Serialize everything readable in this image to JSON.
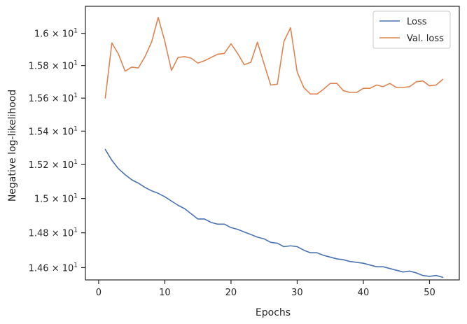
{
  "chart_data": {
    "type": "line",
    "title": "",
    "xlabel": "Epochs",
    "ylabel": "Negative log-likelihood",
    "xlim": [
      -2,
      54.5
    ],
    "ylim": [
      14.53,
      16.17
    ],
    "y_scale": "log",
    "grid": false,
    "legend_position": "top-right",
    "x_ticks": [
      0,
      10,
      20,
      30,
      40,
      50
    ],
    "x_tick_labels": [
      "0",
      "10",
      "20",
      "30",
      "40",
      "50"
    ],
    "y_ticks": [
      14.6,
      14.8,
      15.0,
      15.2,
      15.4,
      15.6,
      15.8,
      16.0
    ],
    "y_tick_labels": [
      {
        "base": "1.46",
        "times": " × 10",
        "exp": "1"
      },
      {
        "base": "1.48",
        "times": " × 10",
        "exp": "1"
      },
      {
        "base": "1.5",
        "times": " × 10",
        "exp": "1"
      },
      {
        "base": "1.52",
        "times": " × 10",
        "exp": "1"
      },
      {
        "base": "1.54",
        "times": " × 10",
        "exp": "1"
      },
      {
        "base": "1.56",
        "times": " × 10",
        "exp": "1"
      },
      {
        "base": "1.58",
        "times": " × 10",
        "exp": "1"
      },
      {
        "base": "1.6",
        "times": " × 10",
        "exp": "1"
      }
    ],
    "x": [
      1,
      2,
      3,
      4,
      5,
      6,
      7,
      8,
      9,
      10,
      11,
      12,
      13,
      14,
      15,
      16,
      17,
      18,
      19,
      20,
      21,
      22,
      23,
      24,
      25,
      26,
      27,
      28,
      29,
      30,
      31,
      32,
      33,
      34,
      35,
      36,
      37,
      38,
      39,
      40,
      41,
      42,
      43,
      44,
      45,
      46,
      47,
      48,
      49,
      50,
      51,
      52
    ],
    "series": [
      {
        "name": "Loss",
        "color": "#4c72b0",
        "values": [
          15.29,
          15.225,
          15.175,
          15.14,
          15.11,
          15.09,
          15.065,
          15.045,
          15.03,
          15.01,
          14.985,
          14.96,
          14.94,
          14.91,
          14.88,
          14.88,
          14.86,
          14.85,
          14.85,
          14.83,
          14.82,
          14.805,
          14.79,
          14.775,
          14.765,
          14.745,
          14.74,
          14.72,
          14.725,
          14.72,
          14.7,
          14.685,
          14.685,
          14.67,
          14.66,
          14.65,
          14.645,
          14.635,
          14.63,
          14.625,
          14.615,
          14.605,
          14.605,
          14.595,
          14.585,
          14.575,
          14.58,
          14.57,
          14.555,
          14.55,
          14.555,
          14.545
        ]
      },
      {
        "name": "Val. loss",
        "color": "#dd8452",
        "values": [
          15.6,
          15.94,
          15.87,
          15.765,
          15.79,
          15.785,
          15.855,
          15.945,
          16.1,
          15.95,
          15.77,
          15.85,
          15.855,
          15.845,
          15.815,
          15.83,
          15.85,
          15.87,
          15.875,
          15.935,
          15.875,
          15.805,
          15.82,
          15.945,
          15.81,
          15.68,
          15.685,
          15.95,
          16.035,
          15.76,
          15.665,
          15.625,
          15.625,
          15.655,
          15.69,
          15.69,
          15.645,
          15.635,
          15.635,
          15.66,
          15.66,
          15.68,
          15.67,
          15.69,
          15.665,
          15.665,
          15.67,
          15.7,
          15.705,
          15.675,
          15.68,
          15.715
        ]
      }
    ]
  }
}
